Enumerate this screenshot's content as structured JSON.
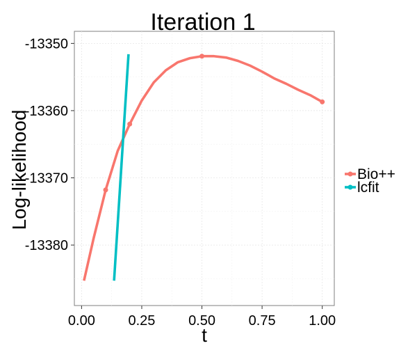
{
  "chart_data": {
    "type": "line",
    "title": "Iteration 1",
    "xlabel": "t",
    "ylabel": "Log-likelihood",
    "xlim": [
      -0.03,
      1.05
    ],
    "ylim": [
      -13389,
      -13348.2
    ],
    "x_ticks": [
      0.0,
      0.25,
      0.5,
      0.75,
      1.0
    ],
    "x_tick_labels": [
      "0.00",
      "0.25",
      "0.50",
      "0.75",
      "1.00"
    ],
    "y_ticks": [
      -13380,
      -13370,
      -13360,
      -13350
    ],
    "y_tick_labels": [
      "-13380",
      "-13370",
      "-13360",
      "-13350"
    ],
    "x_minor_ticks": [
      0.125,
      0.375,
      0.625,
      0.875
    ],
    "y_minor_ticks": [
      -13385,
      -13375,
      -13365,
      -13355
    ],
    "grid": true,
    "legend_position": "right",
    "series": [
      {
        "name": "Bio++",
        "color": "#F8766D",
        "points": [
          [
            0.01,
            -13385.3
          ],
          [
            0.05,
            -13379.0
          ],
          [
            0.1,
            -13371.8
          ],
          [
            0.15,
            -13366.0
          ],
          [
            0.2,
            -13362.0
          ],
          [
            0.25,
            -13358.5
          ],
          [
            0.3,
            -13355.8
          ],
          [
            0.35,
            -13354.0
          ],
          [
            0.4,
            -13352.8
          ],
          [
            0.45,
            -13352.2
          ],
          [
            0.5,
            -13351.9
          ],
          [
            0.55,
            -13351.9
          ],
          [
            0.6,
            -13352.1
          ],
          [
            0.65,
            -13352.6
          ],
          [
            0.7,
            -13353.3
          ],
          [
            0.75,
            -13354.2
          ],
          [
            0.8,
            -13355.2
          ],
          [
            0.85,
            -13356.0
          ],
          [
            0.9,
            -13356.9
          ],
          [
            0.95,
            -13357.7
          ],
          [
            1.0,
            -13358.7
          ]
        ],
        "markers": [
          [
            0.1,
            -13371.8
          ],
          [
            0.2,
            -13362.0
          ],
          [
            0.5,
            -13351.9
          ],
          [
            1.0,
            -13358.7
          ]
        ]
      },
      {
        "name": "lcfit",
        "color": "#00BFC4",
        "points": [
          [
            0.135,
            -13385.3
          ],
          [
            0.195,
            -13351.6
          ]
        ],
        "markers": []
      }
    ]
  }
}
